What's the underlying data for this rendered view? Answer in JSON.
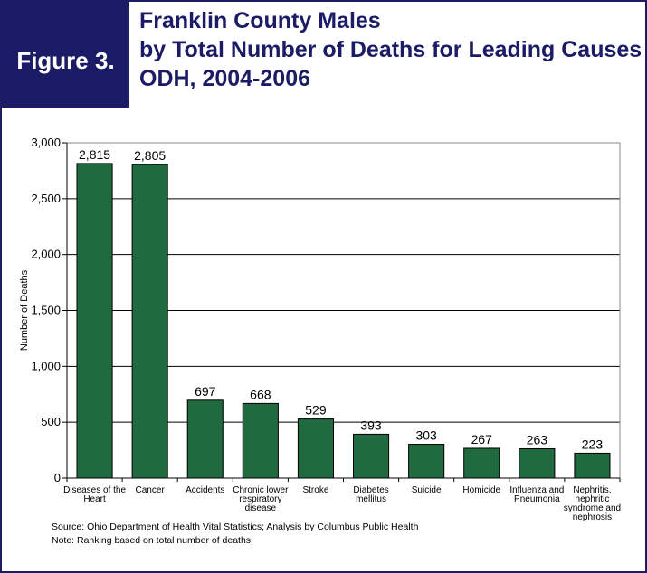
{
  "figure_label": "Figure 3.",
  "title_lines": [
    "Franklin County Males",
    "by Total Number of Deaths for Leading Causes",
    "ODH, 2004-2006"
  ],
  "colors": {
    "navy": "#1b1b66",
    "bar": "#1f6b3f"
  },
  "footnotes": {
    "source": "Source: Ohio Department of Health Vital Statistics; Analysis by Columbus Public Health",
    "note": "Note:  Ranking based on total number of deaths."
  },
  "chart_data": {
    "type": "bar",
    "ylabel": "Number of Deaths",
    "ylim": [
      0,
      3000
    ],
    "yticks": [
      0,
      500,
      1000,
      1500,
      2000,
      2500,
      3000
    ],
    "ytick_labels": [
      "0",
      "500",
      "1,000",
      "1,500",
      "2,000",
      "2,500",
      "3,000"
    ],
    "grid": true,
    "categories": [
      "Diseases of the Heart",
      "Cancer",
      "Accidents",
      "Chronic lower respiratory disease",
      "Stroke",
      "Diabetes mellitus",
      "Suicide",
      "Homicide",
      "Influenza and Pneumonia",
      "Nephritis, nephritic syndrome and nephrosis"
    ],
    "category_lines": [
      [
        "Diseases of the",
        "Heart"
      ],
      [
        "Cancer"
      ],
      [
        "Accidents"
      ],
      [
        "Chronic lower",
        "respiratory",
        "disease"
      ],
      [
        "Stroke"
      ],
      [
        "Diabetes",
        "mellitus"
      ],
      [
        "Suicide"
      ],
      [
        "Homicide"
      ],
      [
        "Influenza and",
        "Pneumonia"
      ],
      [
        "Nephritis,",
        "nephritic",
        "syndrome and",
        "nephrosis"
      ]
    ],
    "values": [
      2815,
      2805,
      697,
      668,
      529,
      393,
      303,
      267,
      263,
      223
    ],
    "value_labels": [
      "2,815",
      "2,805",
      "697",
      "668",
      "529",
      "393",
      "303",
      "267",
      "263",
      "223"
    ]
  }
}
